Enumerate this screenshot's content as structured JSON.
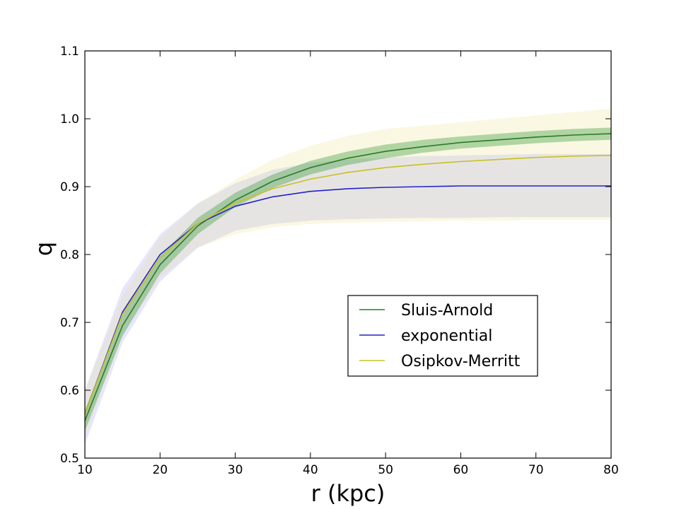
{
  "chart_data": {
    "type": "line",
    "title": "",
    "xlabel": "r (kpc)",
    "ylabel": "q",
    "xlim": [
      10,
      80
    ],
    "ylim": [
      0.5,
      1.1
    ],
    "xticks": [
      10,
      20,
      30,
      40,
      50,
      60,
      70,
      80
    ],
    "xtick_labels": [
      "10",
      "20",
      "30",
      "40",
      "50",
      "60",
      "70",
      "80"
    ],
    "yticks": [
      0.5,
      0.6,
      0.7,
      0.8,
      0.9,
      1.0,
      1.1
    ],
    "ytick_labels": [
      "0.5",
      "0.6",
      "0.7",
      "0.8",
      "0.9",
      "1.0",
      "1.1"
    ],
    "grid": false,
    "legend_position": "lower-right",
    "x": [
      10,
      15,
      20,
      25,
      30,
      35,
      40,
      45,
      50,
      55,
      60,
      65,
      70,
      75,
      80
    ],
    "series": [
      {
        "name": "Sluis-Arnold",
        "color": "#2a7a2a",
        "values": [
          0.555,
          0.695,
          0.785,
          0.842,
          0.88,
          0.908,
          0.928,
          0.942,
          0.952,
          0.959,
          0.965,
          0.969,
          0.973,
          0.976,
          0.978
        ]
      },
      {
        "name": "exponential",
        "color": "#2222cc",
        "values": [
          0.565,
          0.715,
          0.8,
          0.845,
          0.871,
          0.885,
          0.893,
          0.897,
          0.899,
          0.9,
          0.901,
          0.901,
          0.901,
          0.901,
          0.901
        ]
      },
      {
        "name": "Osipkov-Merritt",
        "color": "#c8c020",
        "values": [
          0.565,
          0.712,
          0.795,
          0.845,
          0.876,
          0.897,
          0.911,
          0.921,
          0.928,
          0.933,
          0.937,
          0.94,
          0.943,
          0.945,
          0.946
        ]
      }
    ],
    "uncertainty_bands": [
      {
        "series": "exponential",
        "color": "#8c8cff",
        "lower": [
          0.52,
          0.67,
          0.76,
          0.81,
          0.835,
          0.845,
          0.85,
          0.852,
          0.853,
          0.854,
          0.854,
          0.855,
          0.855,
          0.855,
          0.855
        ],
        "upper": [
          0.6,
          0.75,
          0.83,
          0.875,
          0.905,
          0.925,
          0.935,
          0.94,
          0.943,
          0.945,
          0.946,
          0.947,
          0.948,
          0.948,
          0.948
        ]
      },
      {
        "series": "Osipkov-Merritt",
        "color": "#e8e080",
        "lower": [
          0.53,
          0.68,
          0.765,
          0.81,
          0.83,
          0.84,
          0.845,
          0.847,
          0.848,
          0.849,
          0.85,
          0.85,
          0.851,
          0.851,
          0.851
        ],
        "upper": [
          0.6,
          0.74,
          0.825,
          0.875,
          0.91,
          0.94,
          0.96,
          0.975,
          0.985,
          0.99,
          0.995,
          1.0,
          1.005,
          1.01,
          1.015
        ]
      },
      {
        "series": "Sluis-Arnold",
        "color": "#3a9a3a",
        "lower": [
          0.54,
          0.68,
          0.772,
          0.83,
          0.87,
          0.898,
          0.918,
          0.932,
          0.942,
          0.95,
          0.956,
          0.96,
          0.964,
          0.967,
          0.969
        ],
        "upper": [
          0.57,
          0.71,
          0.798,
          0.854,
          0.891,
          0.918,
          0.938,
          0.952,
          0.962,
          0.969,
          0.974,
          0.978,
          0.982,
          0.985,
          0.987
        ]
      }
    ]
  }
}
